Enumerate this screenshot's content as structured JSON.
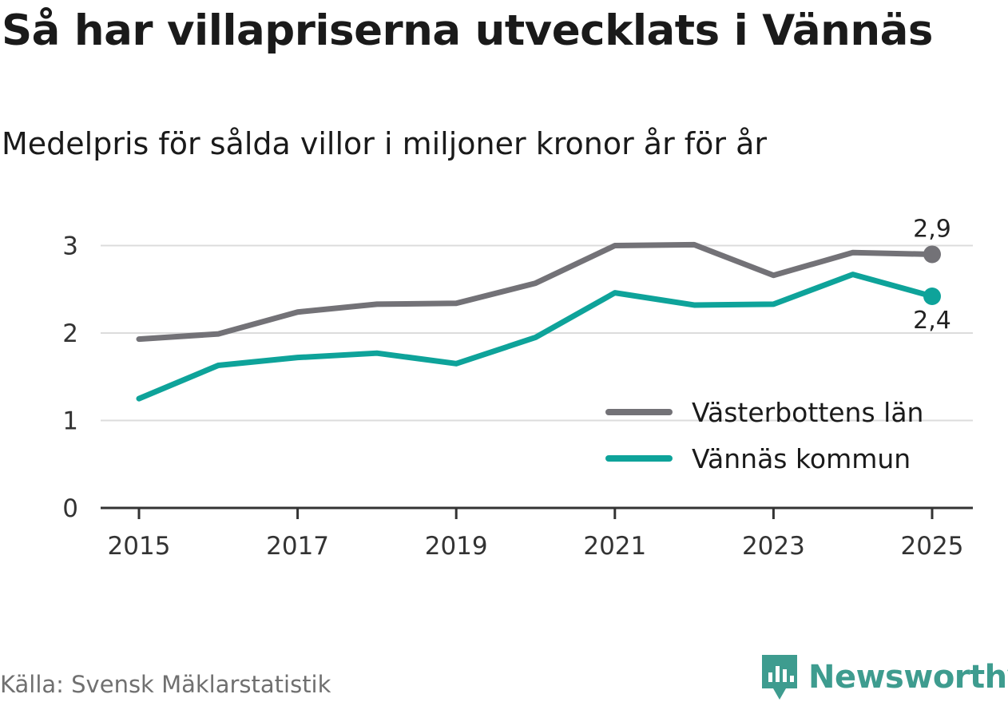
{
  "title": "Så har villapriserna utvecklats i Vännäs",
  "subtitle": "Medelpris för sålda villor i miljoner kronor år för år",
  "source": "Källa: Svensk Mäklarstatistik",
  "brand": {
    "name": "Newsworthy",
    "icon": "newsworthy-logo-icon",
    "color": "#3e9c8f"
  },
  "chart_data": {
    "type": "line",
    "title": "Så har villapriserna utvecklats i Vännäs",
    "subtitle": "Medelpris för sålda villor i miljoner kronor år för år",
    "xlabel": "",
    "ylabel": "",
    "x": [
      2015,
      2016,
      2017,
      2018,
      2019,
      2020,
      2021,
      2022,
      2023,
      2024,
      2025
    ],
    "x_ticks": [
      "2015",
      "2017",
      "2019",
      "2021",
      "2023",
      "2025"
    ],
    "y_ticks": [
      "0",
      "1",
      "2",
      "3"
    ],
    "ylim": [
      0,
      3.3
    ],
    "xlim": [
      2014.5,
      2025.5
    ],
    "grid": true,
    "legend_position": "bottom-right",
    "series": [
      {
        "name": "Västerbottens län",
        "color": "#737277",
        "values": [
          1.93,
          1.99,
          2.24,
          2.33,
          2.34,
          2.57,
          3.0,
          3.01,
          2.66,
          2.92,
          2.9
        ],
        "end_label": "2,9"
      },
      {
        "name": "Vännäs kommun",
        "color": "#0ea39a",
        "values": [
          1.25,
          1.63,
          1.72,
          1.77,
          1.65,
          1.95,
          2.46,
          2.32,
          2.33,
          2.67,
          2.42
        ],
        "end_label": "2,4"
      }
    ]
  }
}
